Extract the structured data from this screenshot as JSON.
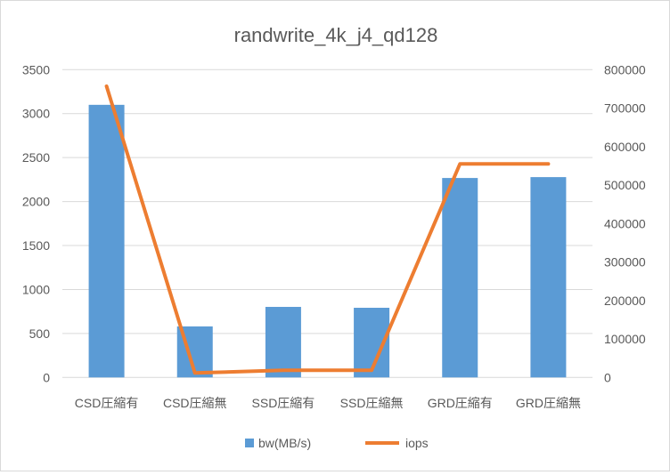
{
  "chart_data": {
    "type": "bar+line",
    "title": "randwrite_4k_j4_qd128",
    "categories": [
      "CSD圧縮有",
      "CSD圧縮無",
      "SSD圧縮有",
      "SSD圧縮無",
      "GRD圧縮有",
      "GRD圧縮無"
    ],
    "series": [
      {
        "name": "bw(MB/s)",
        "type": "bar",
        "axis": "left",
        "color": "#5B9BD5",
        "values": [
          3100,
          580,
          802,
          792,
          2268,
          2278
        ]
      },
      {
        "name": "iops",
        "type": "line",
        "axis": "right",
        "color": "#ED7D31",
        "values": [
          757000,
          11600,
          18500,
          18500,
          555000,
          555000
        ]
      }
    ],
    "y_left": {
      "range": [
        0,
        3500
      ],
      "ticks": [
        "0",
        "500",
        "1000",
        "1500",
        "2000",
        "2500",
        "3000",
        "3500"
      ]
    },
    "y_right": {
      "range": [
        0,
        800000
      ],
      "ticks": [
        "0",
        "100000",
        "200000",
        "300000",
        "400000",
        "500000",
        "600000",
        "700000",
        "800000"
      ]
    },
    "grid": true,
    "legend": "bottom"
  }
}
